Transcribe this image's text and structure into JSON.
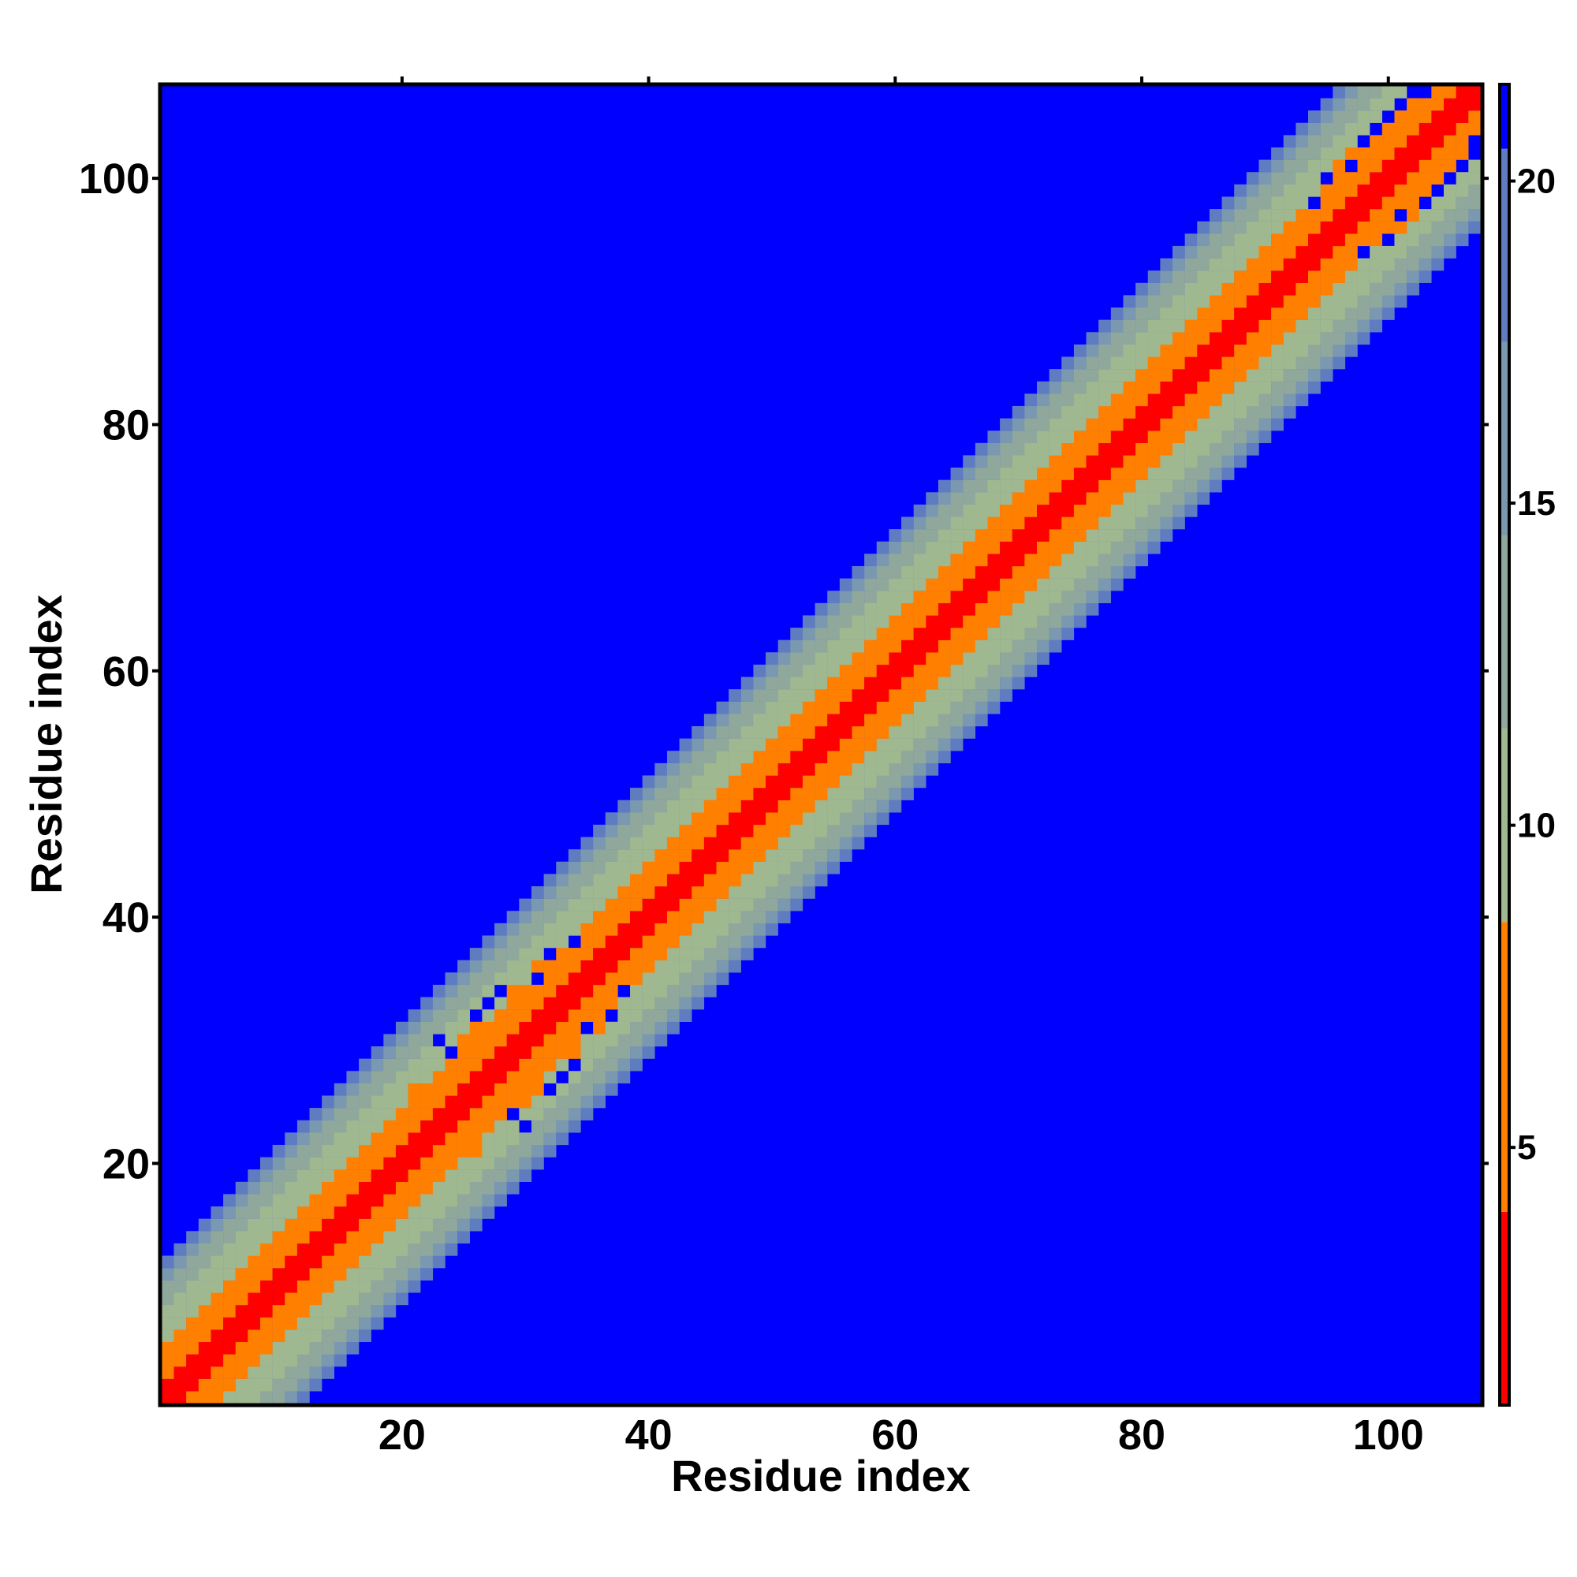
{
  "chart_data": {
    "type": "heatmap",
    "title": "",
    "xlabel": "Residue index",
    "ylabel": "Residue index",
    "n_residues": 107,
    "xlim": [
      1,
      108
    ],
    "ylim": [
      1,
      108
    ],
    "x_ticks": [
      20,
      40,
      60,
      80,
      100
    ],
    "y_ticks": [
      20,
      40,
      60,
      80,
      100
    ],
    "colorbar": {
      "range": [
        1,
        21.5
      ],
      "ticks": [
        5,
        10,
        15,
        20
      ],
      "bins": [
        {
          "from": 1.0,
          "to": 4.0,
          "color": "#ff0000"
        },
        {
          "from": 4.0,
          "to": 8.5,
          "color": "#ff8000"
        },
        {
          "from": 8.5,
          "to": 11.5,
          "color": "#a0b890"
        },
        {
          "from": 11.5,
          "to": 14.5,
          "color": "#90a89c"
        },
        {
          "from": 14.5,
          "to": 17.5,
          "color": "#7a98b0"
        },
        {
          "from": 17.5,
          "to": 20.5,
          "color": "#5f7cc0"
        },
        {
          "from": 20.5,
          "to": 21.5,
          "color": "#0000ff"
        }
      ]
    },
    "distance_model": {
      "description_values": "Cα distance (Å) as a function of sequence separation |i−j|",
      "separation": [
        0,
        1,
        2,
        3,
        4,
        5,
        6,
        7,
        8,
        9,
        10,
        11,
        12
      ],
      "distance": [
        0,
        3.8,
        5.4,
        5.1,
        6.2,
        8.6,
        9.8,
        10.9,
        12.4,
        13.8,
        15.6,
        17.5,
        21.5
      ]
    },
    "contacts": [
      [
        21,
        26
      ],
      [
        22,
        26
      ],
      [
        25,
        30
      ],
      [
        24,
        28
      ],
      [
        28,
        32
      ],
      [
        29,
        33
      ],
      [
        27,
        31
      ],
      [
        26,
        31
      ],
      [
        32,
        36
      ],
      [
        25,
        28
      ],
      [
        30,
        34
      ],
      [
        29,
        34
      ],
      [
        31,
        36
      ],
      [
        37,
        40
      ],
      [
        95,
        99
      ],
      [
        96,
        101
      ],
      [
        97,
        102
      ],
      [
        99,
        103
      ],
      [
        100,
        104
      ],
      [
        101,
        105
      ],
      [
        98,
        102
      ],
      [
        102,
        106
      ],
      [
        96,
        100
      ]
    ],
    "far_pairs": [
      [
        26,
        32
      ],
      [
        27,
        33
      ],
      [
        28,
        34
      ],
      [
        23,
        30
      ],
      [
        34,
        38
      ],
      [
        32,
        37
      ],
      [
        31,
        35
      ],
      [
        24,
        29
      ],
      [
        94,
        98
      ],
      [
        95,
        100
      ],
      [
        97,
        101
      ],
      [
        98,
        103
      ],
      [
        100,
        105
      ],
      [
        101,
        106
      ],
      [
        103,
        107
      ],
      [
        99,
        104
      ],
      [
        102,
        107
      ]
    ]
  }
}
